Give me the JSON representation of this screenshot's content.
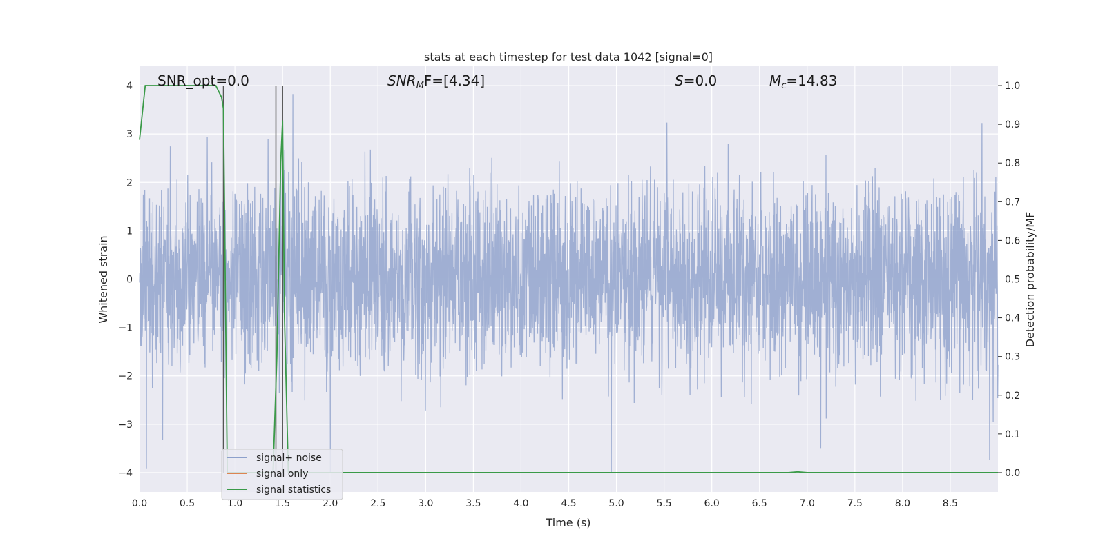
{
  "chart_data": {
    "type": "line",
    "title": "stats at each timestep for test data 1042 [signal=0]",
    "xlabel": "Time (s)",
    "ylabel_left": "Whitened strain",
    "ylabel_right": "Detection probability/MF",
    "xlim": [
      0.0,
      9.0
    ],
    "ylim_left": [
      -4.4,
      4.4
    ],
    "ylim_right": [
      -0.05,
      1.05
    ],
    "x_ticks": [
      "0.0",
      "0.5",
      "1.0",
      "1.5",
      "2.0",
      "2.5",
      "3.0",
      "3.5",
      "4.0",
      "4.5",
      "5.0",
      "5.5",
      "6.0",
      "6.5",
      "7.0",
      "7.5",
      "8.0",
      "8.5"
    ],
    "y_left_ticks": [
      "4",
      "3",
      "2",
      "1",
      "0",
      "−1",
      "−2",
      "−3",
      "−4"
    ],
    "y_right_ticks": [
      "1.0",
      "0.9",
      "0.8",
      "0.7",
      "0.6",
      "0.5",
      "0.4",
      "0.3",
      "0.2",
      "0.1",
      "0.0"
    ],
    "grid": true,
    "legend_placement": "bottom-left",
    "annotations": {
      "snr_opt": "SNR_opt=0.0",
      "snr_mf_sym": "SNR",
      "snr_mf_sub": "M",
      "snr_mf_rest": "F=[4.34]",
      "s_sym": "S",
      "s_rest": "=0.0",
      "mc_sym": "M",
      "mc_sub": "c",
      "mc_rest": "=14.83"
    },
    "vertical_markers_x": [
      0.88,
      1.43,
      1.5
    ],
    "series": [
      {
        "name": "signal+ noise",
        "color": "#8da0cb",
        "description_values": "dense noise, mostly within ±2 whitened strain, spikes up to ~4 and down to ~-4"
      },
      {
        "name": "signal only",
        "color": "#dd8452",
        "x": [],
        "y": []
      },
      {
        "name": "signal statistics",
        "color": "#3a9a48",
        "axis": "right",
        "x": [
          0.0,
          0.06,
          0.12,
          0.2,
          0.3,
          0.4,
          0.5,
          0.6,
          0.7,
          0.8,
          0.86,
          0.88,
          0.92,
          0.96,
          1.0,
          1.1,
          1.2,
          1.3,
          1.4,
          1.44,
          1.48,
          1.5,
          1.52,
          1.56,
          1.6,
          2.0,
          3.0,
          4.0,
          5.0,
          6.0,
          6.8,
          6.9,
          7.0,
          8.0,
          9.0
        ],
        "y": [
          0.86,
          1.0,
          1.0,
          1.0,
          1.0,
          1.0,
          1.0,
          1.0,
          1.0,
          1.0,
          0.97,
          0.94,
          0.0,
          0.0,
          0.0,
          0.0,
          0.0,
          0.0,
          0.0,
          0.3,
          0.8,
          0.91,
          0.4,
          0.0,
          0.0,
          0.0,
          0.0,
          0.0,
          0.0,
          0.0,
          0.0,
          0.002,
          0.0,
          0.0,
          0.0
        ]
      }
    ]
  },
  "legend": [
    {
      "label": "signal+ noise",
      "color": "#8da0cb"
    },
    {
      "label": "signal only",
      "color": "#dd8452"
    },
    {
      "label": "signal statistics",
      "color": "#3a9a48"
    }
  ]
}
